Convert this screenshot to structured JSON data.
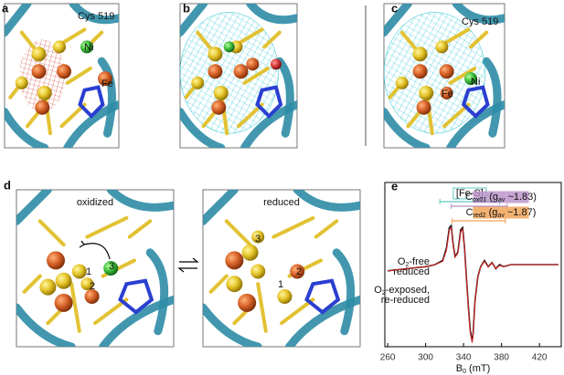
{
  "panels": {
    "a": {
      "letter": "a",
      "cys": "Cys 519",
      "ni": "Ni",
      "fe": "Fe"
    },
    "b": {
      "letter": "b"
    },
    "c": {
      "letter": "c",
      "cys": "Cys 519",
      "ni": "Ni",
      "fe": "Fe"
    },
    "d": {
      "letter": "d",
      "left_title": "oxidized",
      "right_title": "reduced",
      "left_sites": [
        "1",
        "2",
        "3"
      ],
      "right_sites": [
        "1",
        "2",
        "3"
      ]
    }
  },
  "chart_data": {
    "type": "line",
    "letter": "e",
    "x_label_parts": [
      "B",
      "0",
      " (mT)"
    ],
    "xlim": [
      257,
      443
    ],
    "xticks": [
      260,
      300,
      340,
      380,
      420
    ],
    "ylim": [
      -2,
      2
    ],
    "x": [
      260,
      280,
      300,
      310,
      318,
      322,
      325,
      327,
      329,
      331,
      334,
      337,
      339,
      341,
      343,
      345,
      347,
      349,
      350,
      352,
      355,
      358,
      362,
      366,
      370,
      374,
      378,
      382,
      390,
      400,
      420,
      440
    ],
    "series": [
      {
        "name_parts": [
          "O",
          "2",
          "-free"
        ],
        "name_line2": "reduced",
        "color": "#111111",
        "values": [
          -0.15,
          -0.1,
          -0.05,
          0,
          0.1,
          0.4,
          0.9,
          0.95,
          0.5,
          0.2,
          0.3,
          0.85,
          0.9,
          0.4,
          -0.3,
          -1.0,
          -1.6,
          -1.85,
          -1.7,
          -0.9,
          -0.3,
          -0.05,
          0.1,
          -0.05,
          0.05,
          -0.1,
          0,
          -0.05,
          0,
          0,
          0,
          0
        ]
      },
      {
        "name_parts": [
          "O",
          "2",
          "-exposed,"
        ],
        "name_line2": "re-reduced",
        "color": "#d62728",
        "values": [
          -0.15,
          -0.1,
          -0.05,
          0,
          0.08,
          0.35,
          0.85,
          0.9,
          0.48,
          0.18,
          0.28,
          0.8,
          0.86,
          0.38,
          -0.32,
          -1.05,
          -1.65,
          -1.9,
          -1.72,
          -0.92,
          -0.32,
          -0.06,
          0.08,
          -0.06,
          0.04,
          -0.1,
          -0.02,
          -0.05,
          0,
          0,
          0,
          0
        ]
      }
    ],
    "annotations": [
      {
        "label_parts": [
          "[Fe-S]"
        ],
        "range": [
          315,
          378
        ],
        "color": "#5cc6c2"
      },
      {
        "label_parts": [
          "C",
          "ox01",
          " (g",
          "av",
          " ~1.83)"
        ],
        "range": [
          327,
          386
        ],
        "color": "#b88fc8"
      },
      {
        "label_parts": [
          "C",
          "red2",
          " (g",
          "av",
          " ~1.87)"
        ],
        "range": [
          328,
          384
        ],
        "color": "#f0a050"
      }
    ]
  }
}
